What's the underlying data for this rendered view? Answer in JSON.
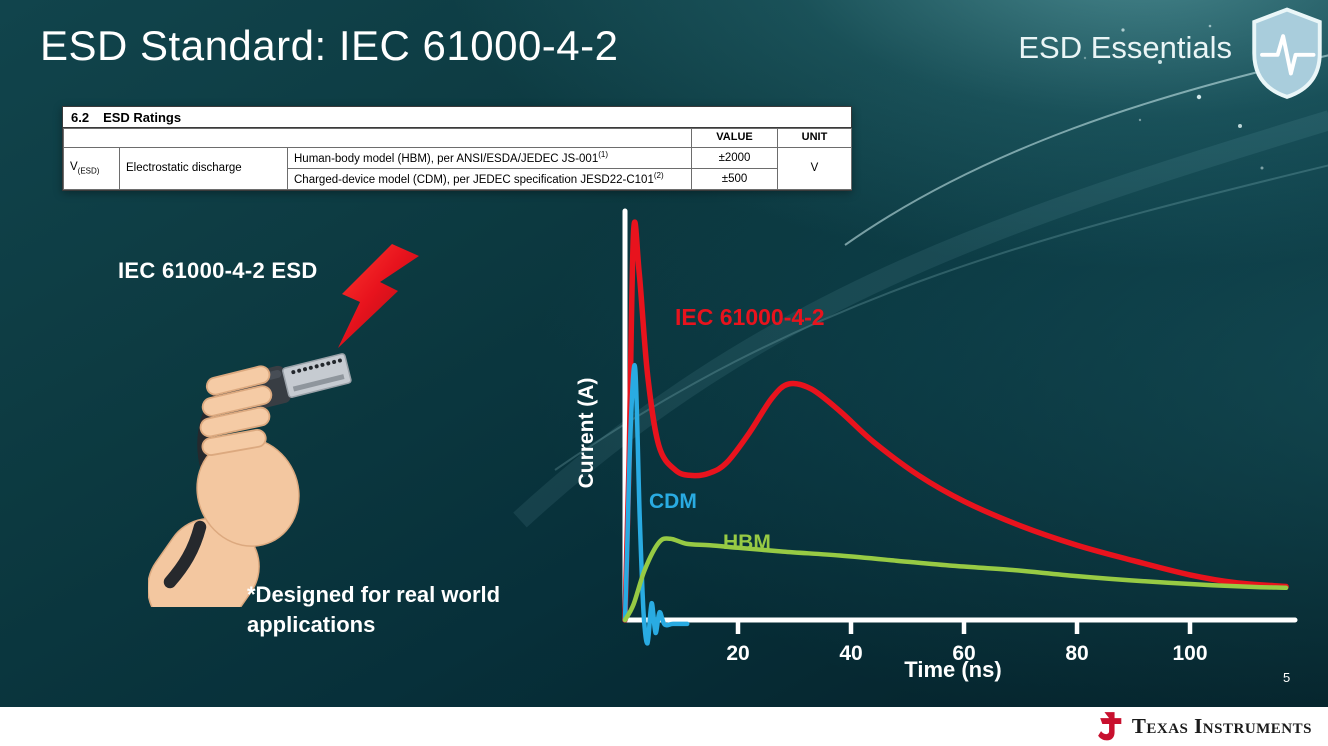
{
  "slide": {
    "title": "ESD Standard: IEC 61000-4-2",
    "series_label": "ESD Essentials",
    "page_number": "5"
  },
  "ratings_table": {
    "heading_number": "6.2",
    "heading_text": "ESD Ratings",
    "value_header": "VALUE",
    "unit_header": "UNIT",
    "param": {
      "symbol": "V",
      "subscript": "(ESD)",
      "name": "Electrostatic discharge"
    },
    "rows": [
      {
        "model": "Human-body model (HBM), per ANSI/ESDA/JEDEC JS-001",
        "footnote": "(1)",
        "value": "±2000"
      },
      {
        "model": "Charged-device model (CDM), per JEDEC specification JESD22-C101",
        "footnote": "(2)",
        "value": "±500"
      }
    ],
    "unit": "V"
  },
  "illustration": {
    "label": "IEC 61000-4-2 ESD",
    "note": "*Designed for real world\napplications"
  },
  "chart_data": {
    "type": "line",
    "xlabel": "Time (ns)",
    "ylabel": "Current (A)",
    "x_ticks": [
      20,
      40,
      60,
      80,
      100
    ],
    "xlim": [
      0,
      118
    ],
    "ylim": [
      -2,
      32
    ],
    "grid": false,
    "legend": "inline-labels",
    "series": [
      {
        "name": "IEC 61000-4-2",
        "color": "#e8131d",
        "x": [
          0,
          0.7,
          1.5,
          2.5,
          4,
          6,
          9,
          12,
          15,
          18,
          22,
          26,
          29,
          33,
          38,
          44,
          52,
          60,
          70,
          80,
          90,
          100,
          108,
          117
        ],
        "y": [
          0,
          12,
          30,
          27,
          19,
          13.5,
          11.6,
          11.2,
          11.4,
          12.2,
          14.5,
          17.2,
          18.3,
          17.9,
          16.2,
          13.8,
          11.2,
          9.2,
          7.3,
          5.8,
          4.6,
          3.5,
          2.9,
          2.6
        ]
      },
      {
        "name": "CDM",
        "color": "#29abe2",
        "x": [
          0,
          0.35,
          1,
          1.8,
          2.6,
          3.3,
          4,
          4.7,
          5.4,
          6.1,
          7,
          8.5,
          11
        ],
        "y": [
          0,
          5,
          15,
          19.5,
          8,
          0.5,
          -1.8,
          1.3,
          -1,
          0.6,
          -0.35,
          -0.3,
          -0.3
        ]
      },
      {
        "name": "HBM",
        "color": "#97ca44",
        "x": [
          0,
          1.5,
          3.5,
          6,
          8,
          11,
          15,
          20,
          28,
          38,
          48,
          58,
          68,
          80,
          92,
          104,
          112,
          117
        ],
        "y": [
          0,
          1.2,
          3.9,
          6.0,
          6.3,
          5.9,
          5.8,
          5.6,
          5.3,
          5.0,
          4.6,
          4.2,
          3.9,
          3.4,
          3.0,
          2.7,
          2.55,
          2.5
        ]
      }
    ]
  },
  "footer": {
    "brand": "Texas Instruments"
  },
  "colors": {
    "background_teal": "#0b3a42",
    "iec_red": "#e8131d",
    "cdm_blue": "#29abe2",
    "hbm_green": "#97ca44",
    "ti_red": "#c8102e"
  }
}
